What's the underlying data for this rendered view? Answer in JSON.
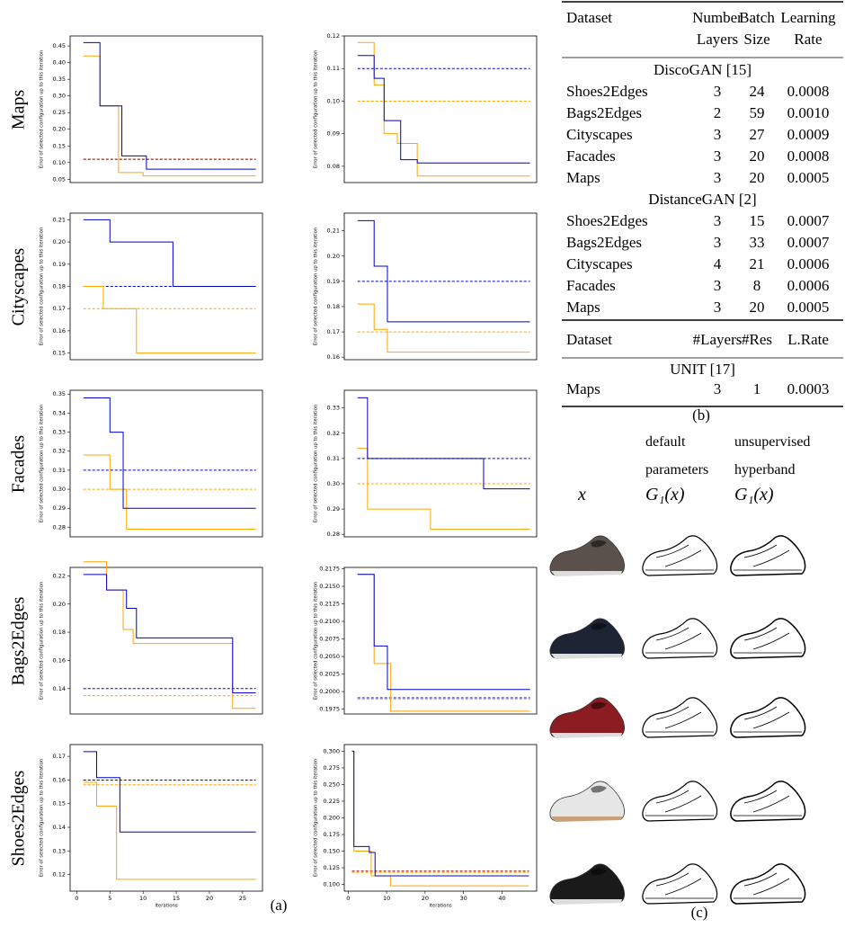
{
  "chart_data": [
    {
      "type": "line",
      "ylabel": "Error of selected configuration up to this iteration",
      "xlim": [
        -1,
        28
      ],
      "ylim": [
        0.04,
        0.48
      ],
      "yticks": [
        0.05,
        {
          "value": 0.1,
          "label": "0.10"
        },
        0.15,
        {
          "value": 0.2,
          "label": "0.20"
        },
        0.25,
        {
          "value": 0.3,
          "label": "0.30"
        },
        0.35,
        {
          "value": 0.4,
          "label": "0.40"
        },
        0.45
      ],
      "series": [
        {
          "color": "#ffa500",
          "linestyle": "dashed",
          "x": [
            1,
            27
          ],
          "values": [
            0.11,
            0.11
          ]
        },
        {
          "color": "#8b0000",
          "linestyle": "dashed",
          "x": [
            1,
            27
          ],
          "values": [
            0.11,
            0.11
          ]
        },
        {
          "color": "#ffa500",
          "linestyle": "solid",
          "x": [
            1,
            3.5,
            3.5,
            6.3,
            6.3,
            10,
            10,
            27
          ],
          "values": [
            0.42,
            0.42,
            0.27,
            0.27,
            0.07,
            0.07,
            0.06,
            0.06
          ]
        },
        {
          "color": "#0000cc",
          "linestyle": "solid",
          "x": [
            1,
            3.5,
            3.5,
            6.8,
            6.8,
            10.5,
            10.5,
            27
          ],
          "values": [
            0.46,
            0.46,
            0.27,
            0.27,
            0.12,
            0.12,
            0.08,
            0.08
          ]
        }
      ]
    },
    {
      "type": "line",
      "ylabel": "Error of selected configuration up to this iteration",
      "xlim": [
        -1,
        28
      ],
      "ylim": [
        0.075,
        0.12
      ],
      "yticks": [
        0.08,
        0.09,
        {
          "value": 0.1,
          "label": "0.10"
        },
        0.11,
        0.12
      ],
      "series": [
        {
          "color": "#ffa500",
          "linestyle": "dashed",
          "x": [
            1,
            27
          ],
          "values": [
            0.1,
            0.1
          ]
        },
        {
          "color": "#0000cc",
          "linestyle": "dashed",
          "x": [
            1,
            27
          ],
          "values": [
            0.11,
            0.11
          ]
        },
        {
          "color": "#ffa500",
          "linestyle": "solid",
          "x": [
            1,
            3.5,
            3.5,
            5,
            5,
            7,
            7,
            10,
            10,
            27
          ],
          "values": [
            0.118,
            0.118,
            0.105,
            0.105,
            0.09,
            0.09,
            0.087,
            0.087,
            0.077,
            0.077
          ]
        },
        {
          "color": "#0000cc",
          "linestyle": "solid",
          "x": [
            1,
            3.5,
            3.5,
            5,
            5,
            7.5,
            7.5,
            10,
            10,
            27
          ],
          "values": [
            0.114,
            0.114,
            0.107,
            0.107,
            0.094,
            0.094,
            0.082,
            0.082,
            0.081,
            0.081
          ]
        }
      ]
    },
    {
      "type": "line",
      "ylabel": "Error of selected configuration up to this iteration",
      "xlim": [
        -1,
        28
      ],
      "ylim": [
        0.147,
        0.213
      ],
      "yticks": [
        0.15,
        0.16,
        0.17,
        0.18,
        0.19,
        {
          "value": 0.2,
          "label": "0.20"
        },
        0.21
      ],
      "series": [
        {
          "color": "#ffa500",
          "linestyle": "dashed",
          "x": [
            1,
            27
          ],
          "values": [
            0.17,
            0.17
          ]
        },
        {
          "color": "#0000cc",
          "linestyle": "dashed",
          "x": [
            1,
            27
          ],
          "values": [
            0.18,
            0.18
          ]
        },
        {
          "color": "#ffa500",
          "linestyle": "solid",
          "x": [
            1,
            4,
            4,
            9,
            9,
            27
          ],
          "values": [
            0.18,
            0.18,
            0.17,
            0.17,
            0.15,
            0.15
          ]
        },
        {
          "color": "#0000cc",
          "linestyle": "solid",
          "x": [
            1,
            5,
            5,
            14.5,
            14.5,
            27
          ],
          "values": [
            0.21,
            0.21,
            0.2,
            0.2,
            0.18,
            0.18
          ]
        }
      ]
    },
    {
      "type": "line",
      "ylabel": "Error of selected configuration up to this iteration",
      "xlim": [
        -1,
        28
      ],
      "ylim": [
        0.159,
        0.217
      ],
      "yticks": [
        0.16,
        0.17,
        0.18,
        0.19,
        {
          "value": 0.2,
          "label": "0.20"
        },
        0.21
      ],
      "series": [
        {
          "color": "#ffa500",
          "linestyle": "dashed",
          "x": [
            1,
            27
          ],
          "values": [
            0.17,
            0.17
          ]
        },
        {
          "color": "#0000cc",
          "linestyle": "dashed",
          "x": [
            1,
            27
          ],
          "values": [
            0.19,
            0.19
          ]
        },
        {
          "color": "#ffa500",
          "linestyle": "solid",
          "x": [
            1,
            3.5,
            3.5,
            5.5,
            5.5,
            27
          ],
          "values": [
            0.181,
            0.181,
            0.171,
            0.171,
            0.162,
            0.162
          ]
        },
        {
          "color": "#0000cc",
          "linestyle": "solid",
          "x": [
            1,
            3.5,
            3.5,
            5.5,
            5.5,
            27
          ],
          "values": [
            0.214,
            0.214,
            0.196,
            0.196,
            0.174,
            0.174
          ]
        }
      ]
    },
    {
      "type": "line",
      "ylabel": "Error of selected configuration up to this iteration",
      "xlim": [
        -1,
        28
      ],
      "ylim": [
        0.275,
        0.352
      ],
      "yticks": [
        0.28,
        0.29,
        {
          "value": 0.3,
          "label": "0.30"
        },
        0.31,
        0.32,
        0.33,
        0.34,
        0.35
      ],
      "series": [
        {
          "color": "#ffa500",
          "linestyle": "dashed",
          "x": [
            1,
            27
          ],
          "values": [
            0.3,
            0.3
          ]
        },
        {
          "color": "#0000cc",
          "linestyle": "dashed",
          "x": [
            1,
            27
          ],
          "values": [
            0.31,
            0.31
          ]
        },
        {
          "color": "#ffa500",
          "linestyle": "solid",
          "x": [
            1,
            5,
            5,
            7.5,
            7.5,
            27
          ],
          "values": [
            0.318,
            0.318,
            0.3,
            0.3,
            0.279,
            0.279
          ]
        },
        {
          "color": "#0000cc",
          "linestyle": "solid",
          "x": [
            1,
            5,
            5,
            7,
            7,
            27
          ],
          "values": [
            0.348,
            0.348,
            0.33,
            0.33,
            0.29,
            0.29
          ]
        }
      ]
    },
    {
      "type": "line",
      "ylabel": "Error of selected configuration up to this iteration",
      "xlim": [
        -1,
        28
      ],
      "ylim": [
        0.279,
        0.337
      ],
      "yticks": [
        0.28,
        0.29,
        {
          "value": 0.3,
          "label": "0.30"
        },
        0.31,
        0.32,
        0.33
      ],
      "series": [
        {
          "color": "#ffa500",
          "linestyle": "dashed",
          "x": [
            1,
            27
          ],
          "values": [
            0.3,
            0.3
          ]
        },
        {
          "color": "#0000cc",
          "linestyle": "dashed",
          "x": [
            1,
            27
          ],
          "values": [
            0.31,
            0.31
          ]
        },
        {
          "color": "#ffa500",
          "linestyle": "solid",
          "x": [
            1,
            2.5,
            2.5,
            12,
            12,
            27
          ],
          "values": [
            0.314,
            0.314,
            0.29,
            0.29,
            0.282,
            0.282
          ]
        },
        {
          "color": "#0000cc",
          "linestyle": "solid",
          "x": [
            1,
            2.5,
            2.5,
            20,
            20,
            27
          ],
          "values": [
            0.334,
            0.334,
            0.31,
            0.31,
            0.298,
            0.298
          ]
        }
      ]
    },
    {
      "type": "line",
      "ylabel": "Error of selected configuration up to this iteration",
      "xlim": [
        -1,
        28
      ],
      "ylim": [
        0.122,
        0.226
      ],
      "yticks": [
        0.14,
        0.16,
        0.18,
        {
          "value": 0.2,
          "label": "0.20"
        },
        0.22
      ],
      "series": [
        {
          "color": "#ffa500",
          "linestyle": "dashed",
          "x": [
            1,
            27
          ],
          "values": [
            0.135,
            0.135
          ]
        },
        {
          "color": "#0000cc",
          "linestyle": "dashed",
          "x": [
            1,
            27
          ],
          "values": [
            0.14,
            0.14
          ]
        },
        {
          "color": "#ffa500",
          "linestyle": "solid",
          "x": [
            1,
            4.5,
            4.5,
            7,
            7,
            8.5,
            8.5,
            23.5,
            23.5,
            27
          ],
          "values": [
            0.23,
            0.23,
            0.21,
            0.21,
            0.182,
            0.182,
            0.172,
            0.172,
            0.126,
            0.126
          ]
        },
        {
          "color": "#0000cc",
          "linestyle": "solid",
          "x": [
            1,
            4.5,
            4.5,
            7.5,
            7.5,
            9,
            9,
            23.5,
            23.5,
            27
          ],
          "values": [
            0.221,
            0.221,
            0.21,
            0.21,
            0.197,
            0.197,
            0.176,
            0.176,
            0.137,
            0.137
          ]
        }
      ]
    },
    {
      "type": "line",
      "ylabel": "Error of selected configuration up to this iteration",
      "xlim": [
        -1,
        28
      ],
      "ylim": [
        0.1968,
        0.2177
      ],
      "yticks": [
        0.1975,
        {
          "value": 0.2,
          "label": "0.2000"
        },
        0.2025,
        {
          "value": 0.205,
          "label": "0.2050"
        },
        0.2075,
        {
          "value": 0.21,
          "label": "0.2100"
        },
        0.2125,
        {
          "value": 0.215,
          "label": "0.2150"
        },
        0.2175
      ],
      "series": [
        {
          "color": "#ffa500",
          "linestyle": "dashed",
          "x": [
            1,
            27
          ],
          "values": [
            0.1989,
            0.1989
          ]
        },
        {
          "color": "#0000cc",
          "linestyle": "dashed",
          "x": [
            1,
            27
          ],
          "values": [
            0.1991,
            0.1991
          ]
        },
        {
          "color": "#ffa500",
          "linestyle": "solid",
          "x": [
            1,
            3.5,
            3.5,
            6,
            6,
            27
          ],
          "values": [
            0.2167,
            0.2167,
            0.204,
            0.204,
            0.1972,
            0.1972
          ]
        },
        {
          "color": "#0000cc",
          "linestyle": "solid",
          "x": [
            1,
            3.5,
            3.5,
            5.5,
            5.5,
            27
          ],
          "values": [
            0.2167,
            0.2167,
            0.2065,
            0.2065,
            0.2003,
            0.2003
          ]
        }
      ]
    },
    {
      "type": "line",
      "ylabel": "Error of selected configuration up to this iteration",
      "xlabel": "Iterations",
      "xlim": [
        -1,
        28
      ],
      "xticks": [
        0,
        5,
        10,
        15,
        20,
        25
      ],
      "ylim": [
        0.113,
        0.175
      ],
      "yticks": [
        0.12,
        0.13,
        0.14,
        0.15,
        0.16,
        0.17
      ],
      "series": [
        {
          "color": "#ffa500",
          "linestyle": "dashed",
          "x": [
            1,
            27
          ],
          "values": [
            0.158,
            0.158
          ]
        },
        {
          "color": "#0000cc",
          "linestyle": "dashed",
          "x": [
            1,
            27
          ],
          "values": [
            0.16,
            0.16
          ]
        },
        {
          "color": "#ffa500",
          "linestyle": "solid",
          "x": [
            1,
            3,
            3,
            6,
            6,
            27
          ],
          "values": [
            0.159,
            0.159,
            0.149,
            0.149,
            0.118,
            0.118
          ]
        },
        {
          "color": "#0000cc",
          "linestyle": "solid",
          "x": [
            1,
            3,
            3,
            6.5,
            6.5,
            27
          ],
          "values": [
            0.172,
            0.172,
            0.161,
            0.161,
            0.138,
            0.138
          ]
        }
      ]
    },
    {
      "type": "line",
      "ylabel": "Error of selected configuration up to this iteration",
      "xlabel": "Iterations",
      "xlim": [
        -1,
        49
      ],
      "xticks": [
        0,
        10,
        20,
        30,
        40
      ],
      "ylim": [
        0.09,
        0.31
      ],
      "yticks": [
        {
          "value": 0.1,
          "label": "0.100"
        },
        0.125,
        {
          "value": 0.15,
          "label": "0.150"
        },
        0.175,
        {
          "value": 0.2,
          "label": "0.200"
        },
        0.225,
        {
          "value": 0.25,
          "label": "0.250"
        },
        0.275,
        {
          "value": 0.3,
          "label": "0.300"
        }
      ],
      "series": [
        {
          "color": "#ffa500",
          "linestyle": "dashed",
          "x": [
            1,
            47
          ],
          "values": [
            0.118,
            0.118
          ]
        },
        {
          "color": "#8b0000",
          "linestyle": "dashed",
          "x": [
            1,
            47
          ],
          "values": [
            0.12,
            0.12
          ]
        },
        {
          "color": "#ffa500",
          "linestyle": "solid",
          "x": [
            1,
            1.5,
            1.5,
            6,
            6,
            11,
            11,
            47
          ],
          "values": [
            0.3,
            0.3,
            0.15,
            0.15,
            0.113,
            0.113,
            0.098,
            0.098
          ]
        },
        {
          "color": "#0000cc",
          "linestyle": "solid",
          "x": [
            1,
            1.5,
            1.5,
            5.5,
            5.5,
            7,
            7,
            47
          ],
          "values": [
            0.3,
            0.3,
            0.157,
            0.157,
            0.148,
            0.148,
            0.113,
            0.113
          ]
        }
      ]
    }
  ],
  "row_labels": [
    "Maps",
    "Cityscapes",
    "Facades",
    "Bags2Edges",
    "Shoes2Edges"
  ],
  "captions": [
    "(a)",
    "(b)",
    "(c)"
  ],
  "table": {
    "header": [
      "Dataset",
      "Number Layers",
      "Batch Size",
      "Learning Rate"
    ],
    "sections": [
      {
        "title": "DiscoGAN [15]",
        "rows": [
          [
            "Shoes2Edges",
            "3",
            "24",
            "0.0008"
          ],
          [
            "Bags2Edges",
            "2",
            "59",
            "0.0010"
          ],
          [
            "Cityscapes",
            "3",
            "27",
            "0.0009"
          ],
          [
            "Facades",
            "3",
            "20",
            "0.0008"
          ],
          [
            "Maps",
            "3",
            "20",
            "0.0005"
          ]
        ]
      },
      {
        "title": "DistanceGAN [2]",
        "rows": [
          [
            "Shoes2Edges",
            "3",
            "15",
            "0.0007"
          ],
          [
            "Bags2Edges",
            "3",
            "33",
            "0.0007"
          ],
          [
            "Cityscapes",
            "4",
            "21",
            "0.0006"
          ],
          [
            "Facades",
            "3",
            "8",
            "0.0006"
          ],
          [
            "Maps",
            "3",
            "20",
            "0.0005"
          ]
        ]
      }
    ],
    "header2": [
      "Dataset",
      "#Layers",
      "#Res",
      "L.Rate"
    ],
    "sections2": [
      {
        "title": "UNIT [17]",
        "rows": [
          [
            "Maps",
            "3",
            "1",
            "0.0003"
          ]
        ]
      }
    ]
  },
  "images": {
    "columns": [
      {
        "label": "x"
      },
      {
        "title": "default parameters",
        "label": "G₁(x)"
      },
      {
        "title": "unsupervised hyperband",
        "label": "G₁(x)"
      }
    ]
  }
}
